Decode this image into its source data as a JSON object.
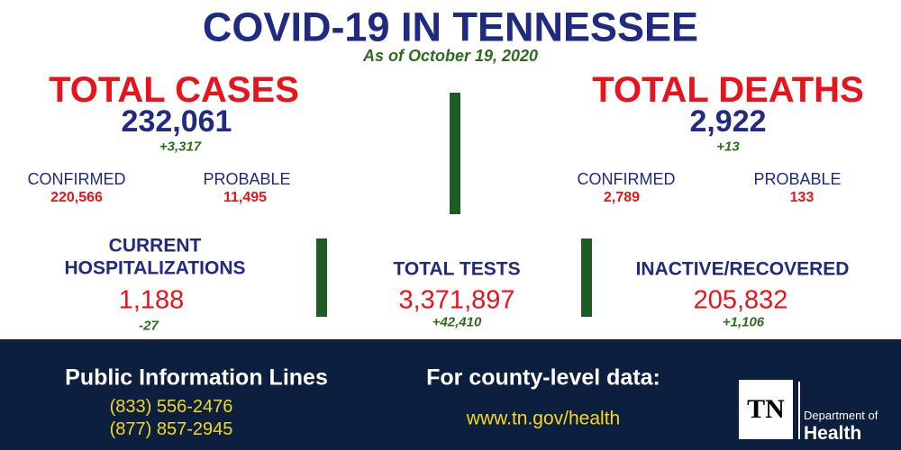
{
  "header": {
    "title": "COVID-19 IN TENNESSEE",
    "date": "As of October 19, 2020"
  },
  "total_cases": {
    "label": "TOTAL CASES",
    "value": "232,061",
    "change": "+3,317",
    "confirmed": {
      "label": "CONFIRMED",
      "value": "220,566"
    },
    "probable": {
      "label": "PROBABLE",
      "value": "11,495"
    }
  },
  "total_deaths": {
    "label": "TOTAL DEATHS",
    "value": "2,922",
    "change": "+13",
    "confirmed": {
      "label": "CONFIRMED",
      "value": "2,789"
    },
    "probable": {
      "label": "PROBABLE",
      "value": "133"
    }
  },
  "hospitalizations": {
    "label": [
      "CURRENT",
      "HOSPITALIZATIONS"
    ],
    "value": "1,188",
    "change": "-27"
  },
  "total_tests": {
    "label": "TOTAL TESTS",
    "value": "3,371,897",
    "change": "+42,410"
  },
  "inactive_recovered": {
    "label": "INACTIVE/RECOVERED",
    "value": "205,832",
    "change": "+1,106"
  },
  "footer": {
    "info_title": "Public Information Lines",
    "phones": [
      "(833) 556-2476",
      "(877) 857-2945"
    ],
    "county_title": "For county-level data:",
    "url": "www.tn.gov/health",
    "logo": {
      "mark": "TN",
      "line1": "Department of",
      "line2": "Health"
    }
  }
}
